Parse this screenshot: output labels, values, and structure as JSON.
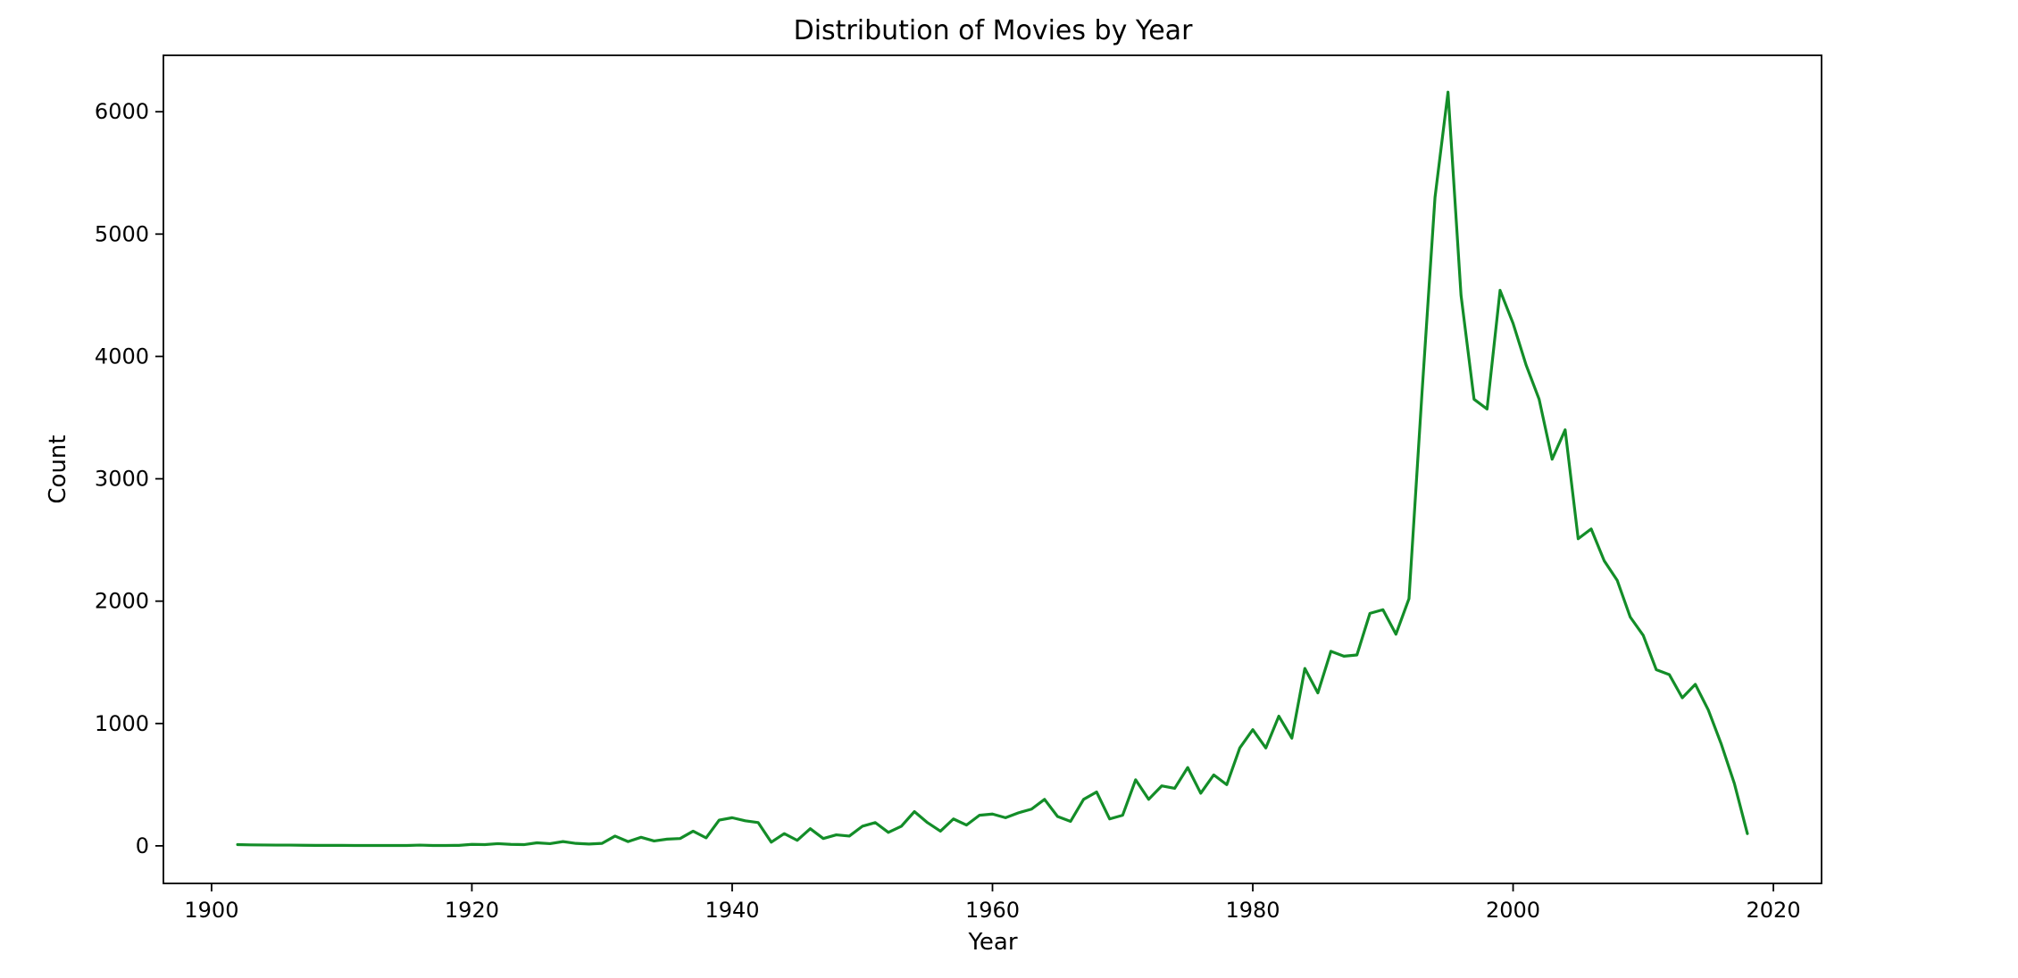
{
  "chart_data": {
    "type": "line",
    "title": "Distribution of Movies by Year",
    "xlabel": "Year",
    "ylabel": "Count",
    "xlim": [
      1896.3,
      2023.7
    ],
    "ylim": [
      -307,
      6461
    ],
    "xticks": [
      1900,
      1920,
      1940,
      1960,
      1980,
      2000,
      2020
    ],
    "yticks": [
      0,
      1000,
      2000,
      3000,
      4000,
      5000,
      6000
    ],
    "grid": false,
    "legend": "none",
    "line_color": "#138d28",
    "series": [
      {
        "x": [
          1902,
          1903,
          1904,
          1905,
          1906,
          1907,
          1908,
          1909,
          1910,
          1911,
          1912,
          1913,
          1914,
          1915,
          1916,
          1917,
          1918,
          1919,
          1920,
          1921,
          1922,
          1923,
          1924,
          1925,
          1926,
          1927,
          1928,
          1929,
          1930,
          1931,
          1932,
          1933,
          1934,
          1935,
          1936,
          1937,
          1938,
          1939,
          1940,
          1941,
          1942,
          1943,
          1944,
          1945,
          1946,
          1947,
          1948,
          1949,
          1950,
          1951,
          1952,
          1953,
          1954,
          1955,
          1956,
          1957,
          1958,
          1959,
          1960,
          1961,
          1962,
          1963,
          1964,
          1965,
          1966,
          1967,
          1968,
          1969,
          1970,
          1971,
          1972,
          1973,
          1974,
          1975,
          1976,
          1977,
          1978,
          1979,
          1980,
          1981,
          1982,
          1983,
          1984,
          1985,
          1986,
          1987,
          1988,
          1989,
          1990,
          1991,
          1992,
          1993,
          1994,
          1995,
          1996,
          1997,
          1998,
          1999,
          2000,
          2001,
          2002,
          2003,
          2004,
          2005,
          2006,
          2007,
          2008,
          2009,
          2010,
          2011,
          2012,
          2013,
          2014,
          2015,
          2016,
          2017,
          2018
        ],
        "y": [
          10,
          8,
          7,
          6,
          6,
          5,
          4,
          4,
          4,
          3,
          3,
          3,
          3,
          3,
          6,
          3,
          3,
          4,
          12,
          10,
          18,
          12,
          10,
          25,
          18,
          35,
          20,
          15,
          20,
          80,
          35,
          70,
          40,
          55,
          60,
          120,
          65,
          210,
          230,
          205,
          190,
          30,
          100,
          45,
          140,
          60,
          90,
          80,
          160,
          190,
          110,
          160,
          280,
          190,
          120,
          220,
          170,
          250,
          260,
          230,
          270,
          300,
          380,
          240,
          200,
          380,
          440,
          220,
          250,
          540,
          380,
          490,
          470,
          640,
          430,
          580,
          500,
          800,
          950,
          800,
          1060,
          880,
          1450,
          1250,
          1590,
          1550,
          1560,
          1900,
          1930,
          1730,
          2020,
          3700,
          5300,
          6160,
          4500,
          3650,
          3570,
          4540,
          4270,
          3930,
          3650,
          3160,
          3400,
          2510,
          2590,
          2330,
          2170,
          1870,
          1720,
          1440,
          1400,
          1210,
          1320,
          1110,
          830,
          510,
          100
        ]
      }
    ]
  }
}
